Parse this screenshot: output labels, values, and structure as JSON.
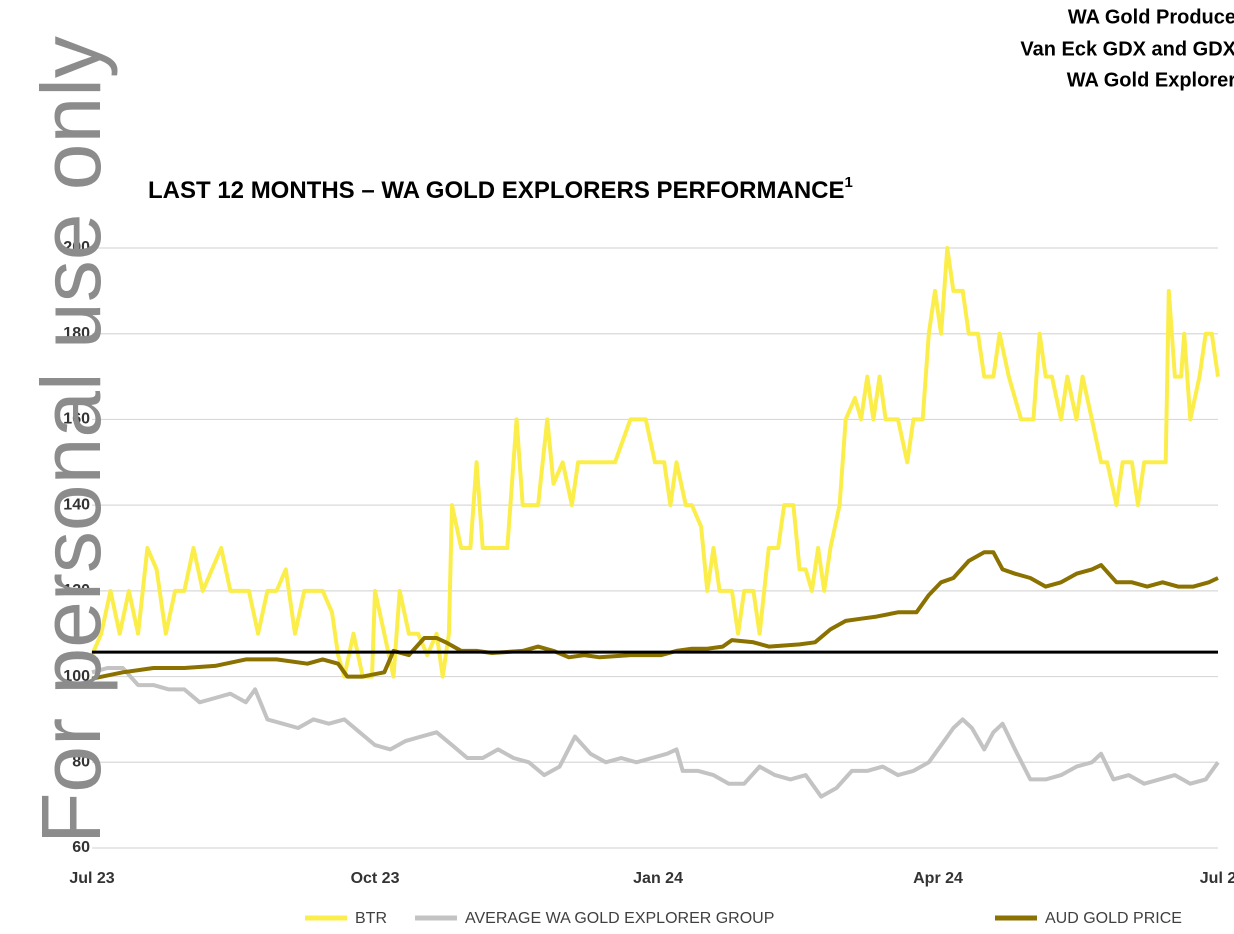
{
  "chart_data": {
    "type": "line",
    "watermark": "For personal use only",
    "header_lines": [
      "WA Gold Produce",
      "Van Eck GDX and GDX",
      "WA Gold Explorer"
    ],
    "title": "LAST 12 MONTHS – WA GOLD EXPLORERS PERFORMANCE",
    "title_note": "1",
    "xlim": [
      0,
      366
    ],
    "xticks": [
      {
        "value": 0,
        "label": "Jul 23"
      },
      {
        "value": 92,
        "label": "Oct 23"
      },
      {
        "value": 184,
        "label": "Jan 24"
      },
      {
        "value": 275,
        "label": "Apr 24"
      },
      {
        "value": 366,
        "label": "Jul 2"
      }
    ],
    "ylim": [
      60,
      200
    ],
    "yticks": [
      60,
      80,
      100,
      120,
      140,
      160,
      180,
      200
    ],
    "grid": true,
    "reference_line": 105.7,
    "series": [
      {
        "name": "BTR",
        "color": "#fbee4a",
        "x": [
          0,
          3,
          6,
          9,
          12,
          15,
          18,
          21,
          24,
          27,
          30,
          33,
          36,
          39,
          42,
          45,
          48,
          51,
          54,
          57,
          60,
          63,
          66,
          69,
          72,
          75,
          78,
          80,
          82,
          85,
          88,
          91,
          92,
          95,
          98,
          100,
          103,
          106,
          109,
          112,
          114,
          116,
          117,
          120,
          123,
          125,
          127,
          130,
          135,
          138,
          140,
          145,
          148,
          150,
          153,
          156,
          158,
          165,
          170,
          175,
          180,
          183,
          186,
          188,
          190,
          193,
          195,
          198,
          200,
          202,
          204,
          208,
          210,
          212,
          215,
          217,
          220,
          223,
          225,
          228,
          230,
          232,
          234,
          236,
          238,
          240,
          243,
          245,
          248,
          250,
          252,
          254,
          256,
          258,
          262,
          265,
          267,
          270,
          272,
          274,
          276,
          278,
          280,
          283,
          285,
          288,
          290,
          293,
          295,
          298,
          302,
          306,
          308,
          310,
          312,
          315,
          317,
          320,
          322,
          325,
          328,
          330,
          333,
          335,
          338,
          340,
          342,
          345,
          349,
          350,
          352,
          354,
          355,
          357,
          360,
          362,
          364,
          366
        ],
        "values": [
          105,
          110,
          120,
          110,
          120,
          110,
          130,
          125,
          110,
          120,
          120,
          130,
          120,
          125,
          130,
          120,
          120,
          120,
          110,
          120,
          120,
          125,
          110,
          120,
          120,
          120,
          115,
          105,
          100,
          110,
          100,
          100,
          120,
          110,
          100,
          120,
          110,
          110,
          105,
          110,
          100,
          110,
          140,
          130,
          130,
          150,
          130,
          130,
          130,
          160,
          140,
          140,
          160,
          145,
          150,
          140,
          150,
          150,
          150,
          160,
          160,
          150,
          150,
          140,
          150,
          140,
          140,
          135,
          120,
          130,
          120,
          120,
          110,
          120,
          120,
          110,
          130,
          130,
          140,
          140,
          125,
          125,
          120,
          130,
          120,
          130,
          140,
          160,
          165,
          160,
          170,
          160,
          170,
          160,
          160,
          150,
          160,
          160,
          180,
          190,
          180,
          200,
          190,
          190,
          180,
          180,
          170,
          170,
          180,
          170,
          160,
          160,
          180,
          170,
          170,
          160,
          170,
          160,
          170,
          160,
          150,
          150,
          140,
          150,
          150,
          140,
          150,
          150,
          150,
          190,
          170,
          170,
          180,
          160,
          170,
          180,
          180,
          170
        ]
      },
      {
        "name": "AVERAGE WA GOLD EXPLORER GROUP",
        "color": "#c3c3c3",
        "x": [
          0,
          5,
          10,
          15,
          20,
          25,
          30,
          35,
          40,
          45,
          50,
          53,
          57,
          62,
          67,
          72,
          77,
          82,
          87,
          92,
          97,
          102,
          107,
          112,
          117,
          122,
          127,
          132,
          137,
          142,
          147,
          152,
          157,
          162,
          167,
          172,
          177,
          182,
          187,
          190,
          192,
          197,
          202,
          207,
          212,
          217,
          222,
          227,
          232,
          237,
          242,
          247,
          252,
          257,
          262,
          267,
          272,
          277,
          280,
          283,
          286,
          290,
          293,
          296,
          300,
          305,
          310,
          315,
          320,
          325,
          328,
          332,
          337,
          342,
          347,
          352,
          357,
          362,
          366
        ],
        "values": [
          101,
          102,
          102,
          98,
          98,
          97,
          97,
          94,
          95,
          96,
          94,
          97,
          90,
          89,
          88,
          90,
          89,
          90,
          87,
          84,
          83,
          85,
          86,
          87,
          84,
          81,
          81,
          83,
          81,
          80,
          77,
          79,
          86,
          82,
          80,
          81,
          80,
          81,
          82,
          83,
          78,
          78,
          77,
          75,
          75,
          79,
          77,
          76,
          77,
          72,
          74,
          78,
          78,
          79,
          77,
          78,
          80,
          85,
          88,
          90,
          88,
          83,
          87,
          89,
          83,
          76,
          76,
          77,
          79,
          80,
          82,
          76,
          77,
          75,
          76,
          77,
          75,
          76,
          80
        ]
      },
      {
        "name": "AUD GOLD PRICE",
        "color": "#8a7100",
        "x": [
          0,
          10,
          20,
          30,
          40,
          50,
          60,
          70,
          75,
          80,
          83,
          88,
          95,
          98,
          103,
          108,
          112,
          115,
          120,
          125,
          130,
          140,
          145,
          150,
          155,
          160,
          165,
          175,
          185,
          190,
          195,
          200,
          205,
          208,
          215,
          220,
          230,
          235,
          240,
          245,
          250,
          255,
          262,
          268,
          272,
          276,
          280,
          285,
          290,
          293,
          296,
          300,
          305,
          310,
          315,
          320,
          325,
          328,
          333,
          338,
          343,
          348,
          353,
          358,
          363,
          366
        ],
        "values": [
          99.5,
          101,
          102,
          102,
          102.5,
          104,
          104,
          103,
          104,
          103,
          100,
          100,
          101,
          106,
          105,
          109,
          109,
          108,
          106,
          106,
          105.5,
          106,
          107,
          106,
          104.5,
          105,
          104.5,
          105,
          105,
          106,
          106.5,
          106.5,
          107,
          108.5,
          108,
          107,
          107.5,
          108,
          111,
          113,
          113.5,
          114,
          115,
          115,
          119,
          122,
          123,
          127,
          129,
          129,
          125,
          124,
          123,
          121,
          122,
          124,
          125,
          126,
          122,
          122,
          121,
          122,
          121,
          121,
          122,
          123
        ]
      }
    ]
  }
}
